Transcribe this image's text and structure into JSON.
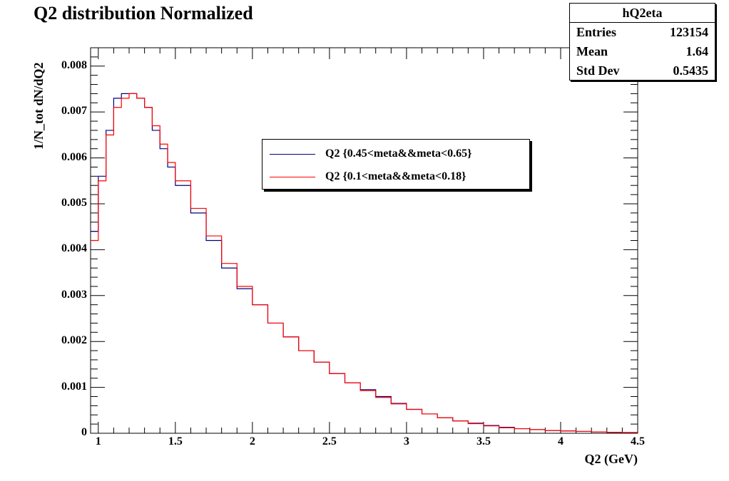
{
  "title": "Q2 distribution Normalized",
  "stats": {
    "name": "hQ2eta",
    "rows": [
      {
        "label": "Entries",
        "value": "123154"
      },
      {
        "label": "Mean",
        "value": "1.64"
      },
      {
        "label": "Std Dev",
        "value": "0.5435"
      }
    ]
  },
  "legend": [
    {
      "label": "Q2 {0.45<meta&&meta<0.65}",
      "color": "#00007f"
    },
    {
      "label": "Q2 {0.1<meta&&meta<0.18}",
      "color": "#ff0000"
    }
  ],
  "chart_data": {
    "type": "line",
    "title": "Q2 distribution Normalized",
    "xlabel": "Q2 (GeV)",
    "ylabel": "1/N_tot dN/dQ2",
    "xlim": [
      0.95,
      4.5
    ],
    "ylim": [
      0,
      0.0084
    ],
    "x_ticks": [
      "1",
      "1.5",
      "2",
      "2.5",
      "3",
      "3.5",
      "4",
      "4.5"
    ],
    "y_ticks": [
      "0",
      "0.001",
      "0.002",
      "0.003",
      "0.004",
      "0.005",
      "0.006",
      "0.007",
      "0.008"
    ],
    "grid": false,
    "legend_position": "top-center",
    "series": [
      {
        "name": "Q2 {0.45<meta&&meta<0.65}",
        "color": "#00007f",
        "x": [
          0.95,
          1.0,
          1.05,
          1.1,
          1.15,
          1.2,
          1.25,
          1.3,
          1.35,
          1.4,
          1.45,
          1.5,
          1.6,
          1.7,
          1.8,
          1.9,
          2.0,
          2.1,
          2.2,
          2.3,
          2.4,
          2.5,
          2.6,
          2.7,
          2.8,
          2.9,
          3.0,
          3.1,
          3.2,
          3.3,
          3.4,
          3.5,
          3.6,
          3.7,
          3.8,
          3.9,
          4.0,
          4.1,
          4.2,
          4.3,
          4.4,
          4.5
        ],
        "y": [
          0.0044,
          0.0056,
          0.0066,
          0.0073,
          0.0074,
          0.0074,
          0.0073,
          0.0071,
          0.0066,
          0.0062,
          0.0058,
          0.0054,
          0.0048,
          0.0042,
          0.0036,
          0.00315,
          0.0028,
          0.0024,
          0.0021,
          0.0018,
          0.00155,
          0.0013,
          0.0011,
          0.00095,
          0.0008,
          0.00065,
          0.00052,
          0.00042,
          0.00034,
          0.00027,
          0.00022,
          0.00017,
          0.00013,
          0.0001,
          8e-05,
          6e-05,
          5e-05,
          4e-05,
          3e-05,
          2e-05,
          1.5e-05,
          1e-05
        ]
      },
      {
        "name": "Q2 {0.1<meta&&meta<0.18}",
        "color": "#ff0000",
        "x": [
          0.95,
          1.0,
          1.05,
          1.1,
          1.15,
          1.2,
          1.25,
          1.3,
          1.35,
          1.4,
          1.45,
          1.5,
          1.6,
          1.7,
          1.8,
          1.9,
          2.0,
          2.1,
          2.2,
          2.3,
          2.4,
          2.5,
          2.6,
          2.7,
          2.8,
          2.9,
          3.0,
          3.1,
          3.2,
          3.3,
          3.4,
          3.5,
          3.6,
          3.7,
          3.8,
          3.9,
          4.0,
          4.1,
          4.2,
          4.3,
          4.4,
          4.5
        ],
        "y": [
          0.0042,
          0.0055,
          0.0065,
          0.0071,
          0.0073,
          0.0074,
          0.0073,
          0.0071,
          0.0067,
          0.0063,
          0.0059,
          0.0055,
          0.0049,
          0.0043,
          0.0037,
          0.0032,
          0.0028,
          0.0024,
          0.0021,
          0.0018,
          0.00155,
          0.0013,
          0.0011,
          0.00093,
          0.00078,
          0.00064,
          0.00052,
          0.00042,
          0.00034,
          0.00027,
          0.00021,
          0.00016,
          0.00012,
          0.0001,
          8e-05,
          6e-05,
          5e-05,
          4e-05,
          3e-05,
          2e-05,
          1.5e-05,
          1e-05
        ]
      }
    ]
  }
}
